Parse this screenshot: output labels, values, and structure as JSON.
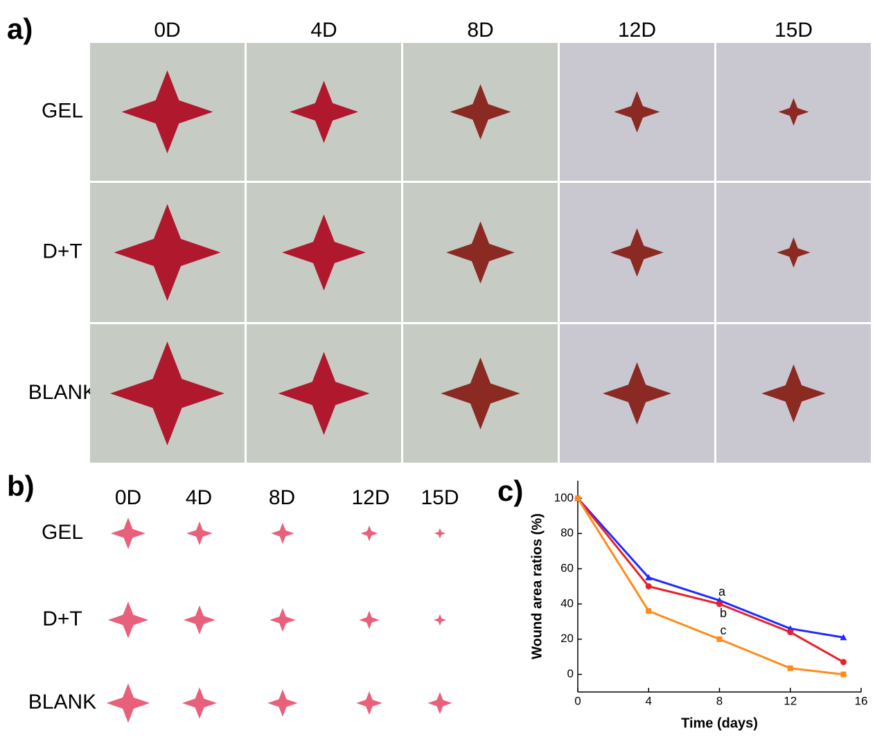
{
  "panel_a": {
    "label": "a)",
    "columns": [
      "0D",
      "4D",
      "8D",
      "12D",
      "15D"
    ],
    "rows": [
      "GEL",
      "D+T",
      "BLANK"
    ]
  },
  "panel_b": {
    "label": "b)",
    "columns": [
      "0D",
      "4D",
      "8D",
      "12D",
      "15D"
    ],
    "rows": [
      "GEL",
      "D+T",
      "BLANK"
    ]
  },
  "panel_c": {
    "label": "c)"
  },
  "chart_data": {
    "type": "line",
    "xlabel": "Time (days)",
    "ylabel": "Wound area ratios (%)",
    "x": [
      0,
      4,
      8,
      12,
      15
    ],
    "series": [
      {
        "color": "#1f2bff",
        "marker": "triangle",
        "values": [
          100,
          55,
          42,
          26,
          21
        ]
      },
      {
        "color": "#e8202a",
        "marker": "circle",
        "values": [
          100,
          50,
          40,
          24,
          7
        ]
      },
      {
        "color": "#ff8a1a",
        "marker": "square",
        "values": [
          100,
          36,
          20,
          3.5,
          0
        ]
      }
    ],
    "annotations": [
      "a",
      "b",
      "c"
    ],
    "xlim": [
      0,
      16
    ],
    "xticks": [
      0,
      4,
      8,
      12,
      16
    ],
    "ylim": [
      -10,
      110
    ],
    "yticks": [
      0,
      20,
      40,
      60,
      80,
      100
    ]
  }
}
